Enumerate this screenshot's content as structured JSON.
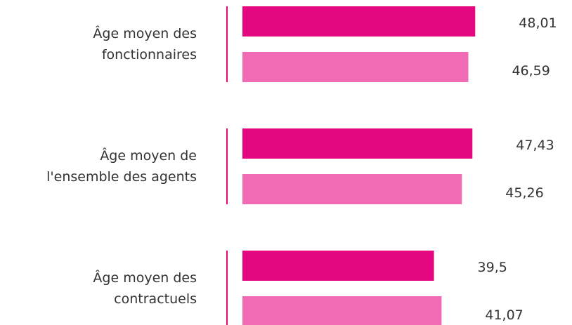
{
  "chart_data": {
    "type": "bar",
    "orientation": "horizontal",
    "categories": [
      "Âge moyen des\nfonctionnaires",
      "Âge moyen de\nl'ensemble des agents",
      "Âge moyen des\ncontractuels"
    ],
    "series": [
      {
        "color": "#e5077f",
        "values": [
          48.01,
          47.43,
          39.5
        ],
        "value_labels": [
          "48,01",
          "47,43",
          "39,5"
        ]
      },
      {
        "color": "#f06bb4",
        "values": [
          46.59,
          45.26,
          41.07
        ],
        "value_labels": [
          "46,59",
          "45,26",
          "41,07"
        ]
      }
    ]
  }
}
